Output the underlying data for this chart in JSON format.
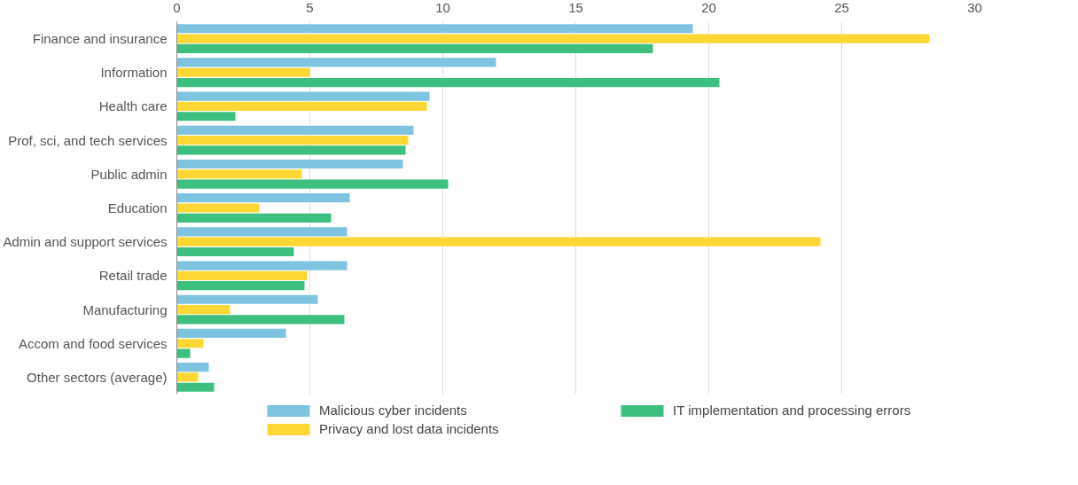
{
  "chart_data": {
    "type": "bar",
    "orientation": "horizontal",
    "categories": [
      "Finance and insurance",
      "Information",
      "Health care",
      "Prof, sci, and tech services",
      "Public admin",
      "Education",
      "Admin and support services",
      "Retail trade",
      "Manufacturing",
      "Accom and food services",
      "Other sectors (average)"
    ],
    "series": [
      {
        "name": "Malicious cyber incidents",
        "color": "#7ec4e0",
        "values": [
          19.4,
          12.0,
          9.5,
          8.9,
          8.5,
          6.5,
          6.4,
          6.4,
          5.3,
          4.1,
          1.2
        ]
      },
      {
        "name": "Privacy and lost data incidents",
        "color": "#fdd835",
        "values": [
          28.3,
          5.0,
          9.4,
          8.7,
          4.7,
          3.1,
          24.2,
          4.9,
          2.0,
          1.0,
          0.8
        ]
      },
      {
        "name": "IT implementation and processing errors",
        "color": "#3dbf7f",
        "values": [
          17.9,
          20.4,
          2.2,
          8.6,
          10.2,
          5.8,
          4.4,
          4.8,
          6.3,
          0.5,
          1.4
        ]
      }
    ],
    "xlim": [
      0,
      30
    ],
    "xticks": [
      0,
      5,
      10,
      15,
      20,
      25,
      30
    ],
    "grid": "x",
    "legend": "bottom"
  }
}
